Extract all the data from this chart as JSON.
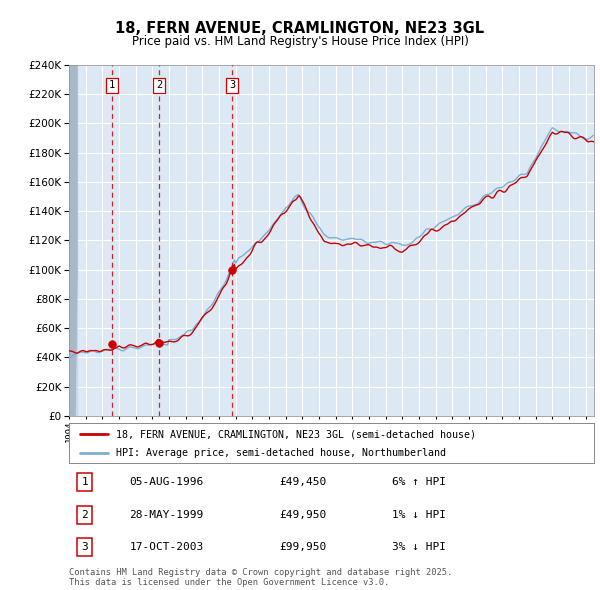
{
  "title_line1": "18, FERN AVENUE, CRAMLINGTON, NE23 3GL",
  "title_line2": "Price paid vs. HM Land Registry's House Price Index (HPI)",
  "legend_red": "18, FERN AVENUE, CRAMLINGTON, NE23 3GL (semi-detached house)",
  "legend_blue": "HPI: Average price, semi-detached house, Northumberland",
  "transactions": [
    {
      "label": "1",
      "date": "05-AUG-1996",
      "price": 49450,
      "year": 1996.59,
      "pct": "6%",
      "dir": "↑"
    },
    {
      "label": "2",
      "date": "28-MAY-1999",
      "price": 49950,
      "year": 1999.4,
      "pct": "1%",
      "dir": "↓"
    },
    {
      "label": "3",
      "date": "17-OCT-2003",
      "price": 99950,
      "year": 2003.79,
      "pct": "3%",
      "dir": "↓"
    }
  ],
  "footnote": "Contains HM Land Registry data © Crown copyright and database right 2025.\nThis data is licensed under the Open Government Licence v3.0.",
  "ylim": [
    0,
    240000
  ],
  "yticks": [
    0,
    20000,
    40000,
    60000,
    80000,
    100000,
    120000,
    140000,
    160000,
    180000,
    200000,
    220000,
    240000
  ],
  "xlim_start": 1994.0,
  "xlim_end": 2025.5,
  "bg_color": "#dce9f5",
  "red_line_color": "#cc0000",
  "blue_line_color": "#7ab0d4",
  "dashed_color": "#cc0000",
  "marker_color": "#cc0000",
  "white": "#ffffff",
  "hatch_bg": "#c8d8e8"
}
